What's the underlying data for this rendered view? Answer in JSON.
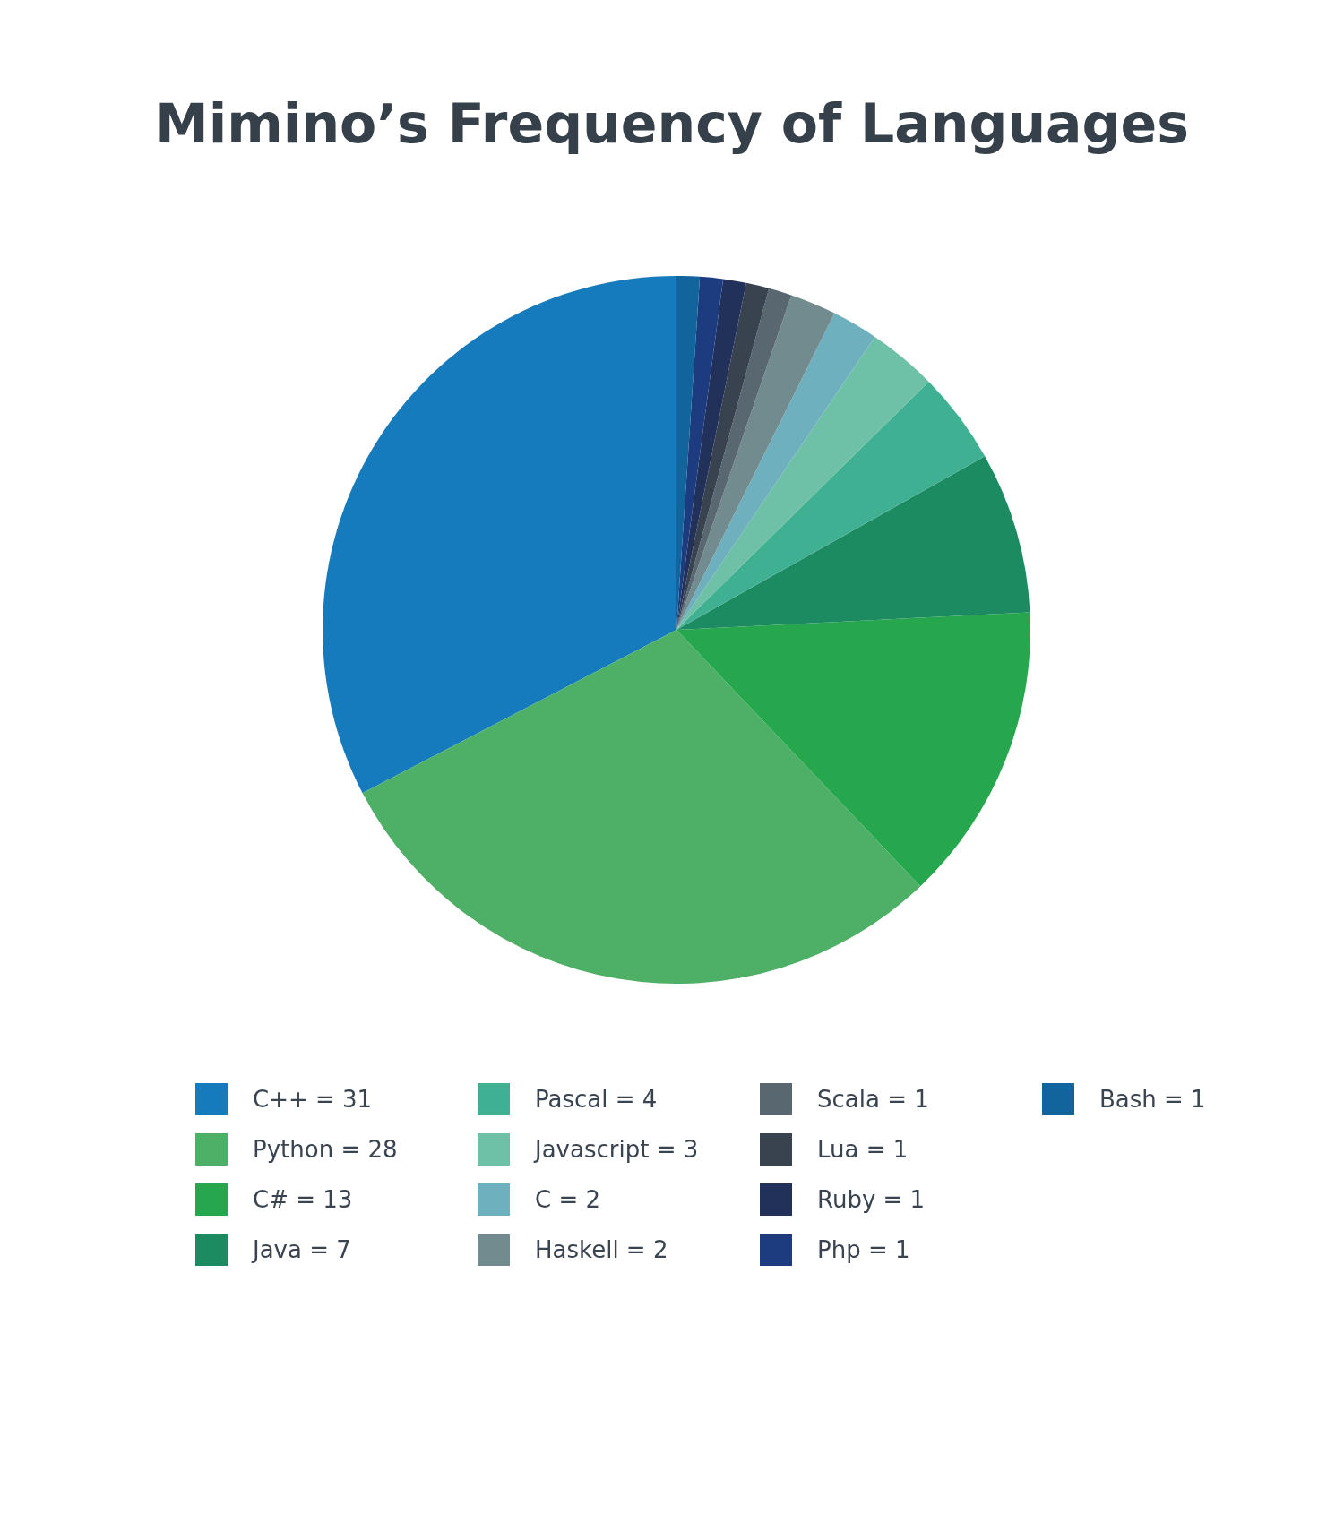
{
  "chart_data": {
    "type": "pie",
    "title": "Mimino’s Frequency of Languages",
    "categories": [
      "C++ = 31",
      "Python = 28",
      "C# = 13",
      "Java = 7",
      "Pascal = 4",
      "Javascript = 3",
      "C = 2",
      "Haskell = 2",
      "Scala = 1",
      "Lua = 1",
      "Ruby = 1",
      "Php = 1",
      "Bash = 1"
    ],
    "values": [
      31,
      28,
      13,
      7,
      4,
      3,
      2,
      2,
      1,
      1,
      1,
      1,
      1
    ],
    "colors": [
      "#157bbd",
      "#4eb066",
      "#26a74d",
      "#1d8b62",
      "#40b093",
      "#6ec0a6",
      "#6fb0bf",
      "#718b8e",
      "#586770",
      "#38434f",
      "#22315a",
      "#1d3c7f",
      "#12649c"
    ],
    "legend": "bottom"
  }
}
